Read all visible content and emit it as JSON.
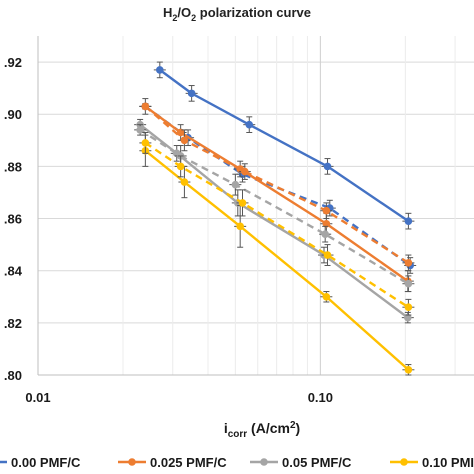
{
  "chart_data": {
    "type": "line",
    "title": {
      "main": "H",
      "sub1": "2",
      "mid": "/O",
      "sub2": "2",
      "tail": " polarization curve"
    },
    "xlabel": {
      "main": "i",
      "sub": "corr",
      "tail": " (A/cm",
      "sup": "2",
      "end": ")"
    },
    "ylabel": "",
    "x_scale": "log",
    "xlim": [
      0.01,
      0.35
    ],
    "ylim": [
      0.8,
      0.93
    ],
    "x_ticks": [
      0.01,
      0.1
    ],
    "x_tick_labels": [
      "0.01",
      "0.10"
    ],
    "y_ticks": [
      0.8,
      0.82,
      0.84,
      0.86,
      0.88,
      0.9,
      0.92
    ],
    "y_tick_labels": [
      ".80",
      ".82",
      ".84",
      ".86",
      ".88",
      ".90",
      ".92"
    ],
    "grid": true,
    "legend_position": "bottom",
    "series": [
      {
        "name": "0.00 PMF/C",
        "color": "#4472C4",
        "style": "solid",
        "x": [
          0.027,
          0.035,
          0.056,
          0.106,
          0.205
        ],
        "y": [
          0.917,
          0.908,
          0.896,
          0.88,
          0.859
        ],
        "err": [
          0.003,
          0.003,
          0.003,
          0.003,
          0.003
        ]
      },
      {
        "name": "",
        "color": "#4472C4",
        "style": "dashed",
        "x": [
          0.024,
          0.034,
          0.053,
          0.108,
          0.208
        ],
        "y": [
          0.903,
          0.891,
          0.877,
          0.864,
          0.842
        ],
        "err": [
          0.003,
          0.003,
          0.003,
          0.003,
          0.003
        ]
      },
      {
        "name": "0.025 PMF/C",
        "color": "#ED7D31",
        "style": "solid",
        "x": [
          0.024,
          0.032,
          0.052,
          0.105,
          0.204
        ],
        "y": [
          0.903,
          0.893,
          0.879,
          0.858,
          0.836
        ],
        "err": [
          0.001,
          0.003,
          0.003,
          0.004,
          0.004
        ]
      },
      {
        "name": "",
        "color": "#ED7D31",
        "style": "dashed",
        "x": [
          0.024,
          0.033,
          0.054,
          0.105,
          0.205
        ],
        "y": [
          0.903,
          0.89,
          0.878,
          0.863,
          0.843
        ],
        "err": [
          0.001,
          0.004,
          0.003,
          0.003,
          0.003
        ]
      },
      {
        "name": "0.05 PMF/C",
        "color": "#A5A5A5",
        "style": "solid",
        "x": [
          0.023,
          0.031,
          0.051,
          0.103,
          0.204
        ],
        "y": [
          0.896,
          0.885,
          0.866,
          0.846,
          0.822
        ],
        "err": [
          0.002,
          0.003,
          0.005,
          0.003,
          0.002
        ]
      },
      {
        "name": "",
        "color": "#A5A5A5",
        "style": "dashed",
        "x": [
          0.023,
          0.032,
          0.05,
          0.104,
          0.205
        ],
        "y": [
          0.894,
          0.884,
          0.873,
          0.854,
          0.835
        ],
        "err": [
          0.002,
          0.004,
          0.004,
          0.003,
          0.003
        ]
      },
      {
        "name": "0.10 PMI",
        "color": "#FFC000",
        "style": "solid",
        "x": [
          0.024,
          0.033,
          0.052,
          0.105,
          0.205
        ],
        "y": [
          0.886,
          0.874,
          0.857,
          0.83,
          0.802
        ],
        "err": [
          0.006,
          0.006,
          0.008,
          0.002,
          0.002
        ]
      },
      {
        "name": "",
        "color": "#FFC000",
        "style": "dashed",
        "x": [
          0.024,
          0.032,
          0.053,
          0.106,
          0.205
        ],
        "y": [
          0.889,
          0.88,
          0.866,
          0.846,
          0.826
        ],
        "err": [
          0.004,
          0.004,
          0.005,
          0.004,
          0.003
        ]
      }
    ],
    "legend": [
      {
        "label": "0.00 PMF/C",
        "color": "#4472C4"
      },
      {
        "label": "0.025 PMF/C",
        "color": "#ED7D31"
      },
      {
        "label": "0.05 PMF/C",
        "color": "#A5A5A5"
      },
      {
        "label": "0.10 PMI",
        "color": "#FFC000"
      }
    ]
  }
}
